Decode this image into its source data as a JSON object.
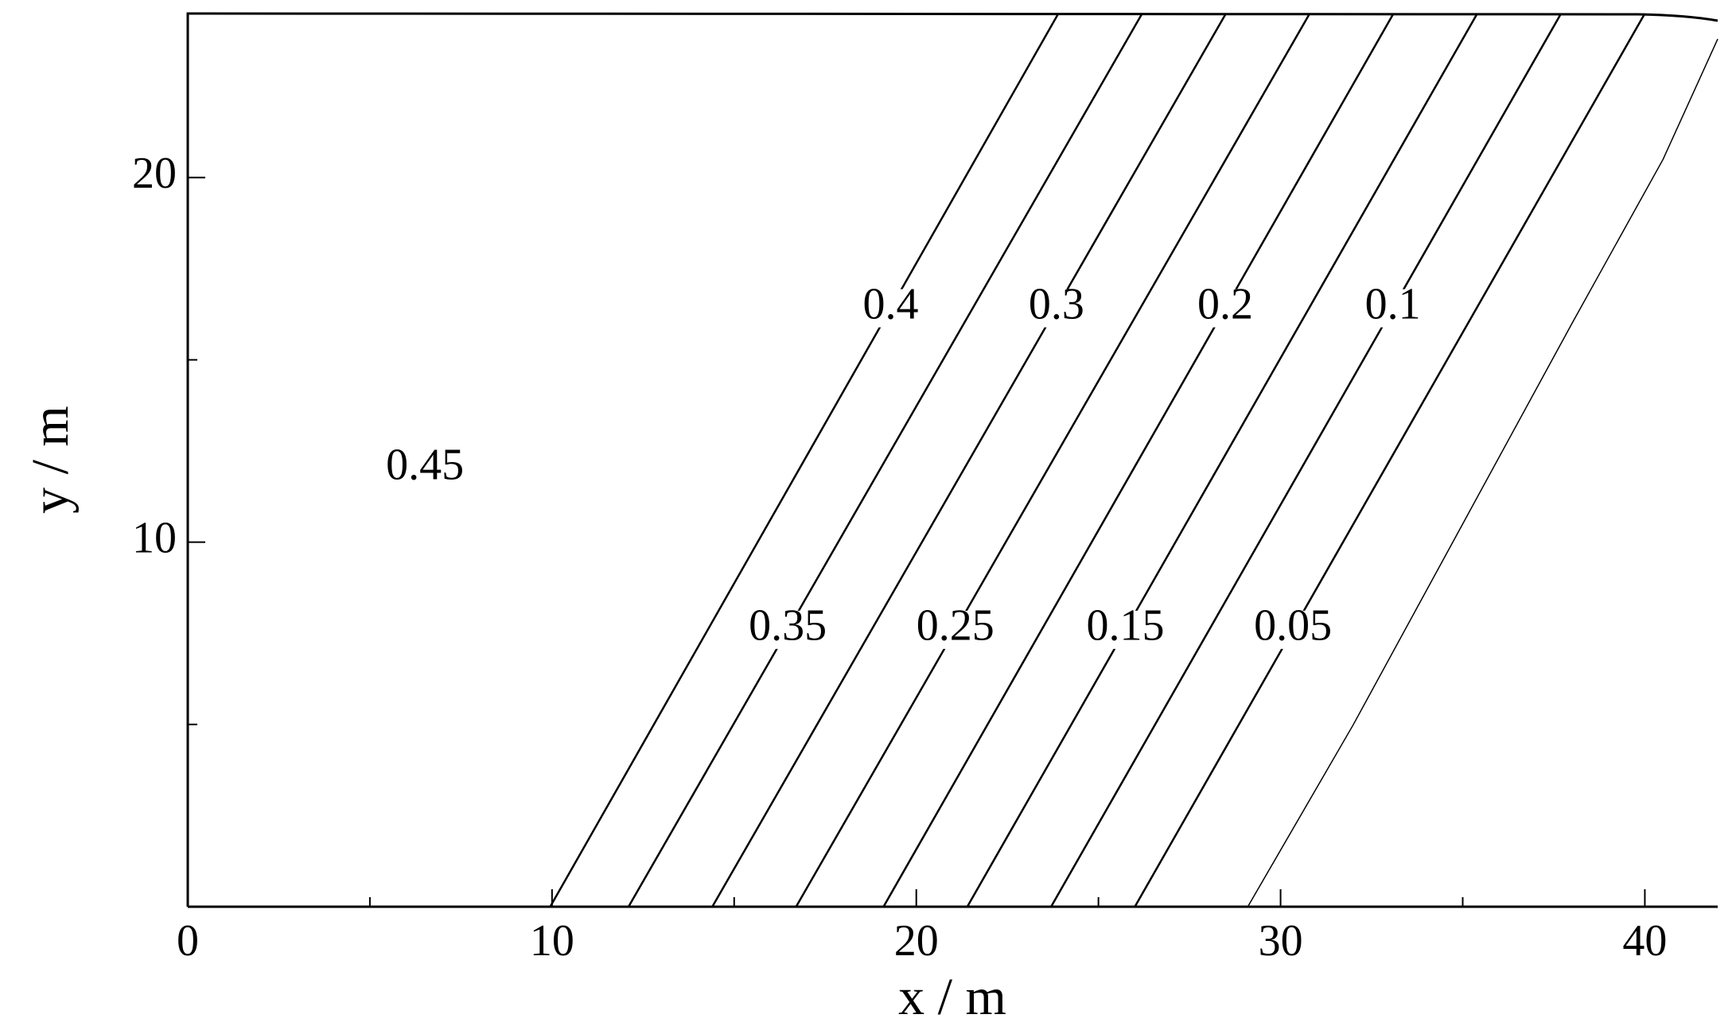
{
  "chart_data": {
    "type": "contour",
    "xlabel": "x / m",
    "ylabel": "y / m",
    "xlim": [
      0,
      42
    ],
    "ylim": [
      0,
      24.5
    ],
    "xticks": [
      0,
      10,
      20,
      30,
      40
    ],
    "yticks": [
      10,
      20
    ],
    "xminorticks": [
      5,
      15,
      25,
      35
    ],
    "yminorticks": [
      5,
      15
    ],
    "color": "#000000",
    "region_level": 0.45,
    "contours": [
      {
        "level": 0.4,
        "x": [
          9.95,
          23.9
        ],
        "y": [
          0,
          24.5
        ]
      },
      {
        "level": 0.35,
        "x": [
          12.1,
          26.2
        ],
        "y": [
          0,
          24.5
        ]
      },
      {
        "level": 0.3,
        "x": [
          14.4,
          28.5
        ],
        "y": [
          0,
          24.5
        ]
      },
      {
        "level": 0.25,
        "x": [
          16.7,
          30.8
        ],
        "y": [
          0,
          24.5
        ]
      },
      {
        "level": 0.2,
        "x": [
          19.1,
          33.1
        ],
        "y": [
          0,
          24.5
        ]
      },
      {
        "level": 0.15,
        "x": [
          21.4,
          35.4
        ],
        "y": [
          0,
          24.5
        ]
      },
      {
        "level": 0.1,
        "x": [
          23.7,
          37.7
        ],
        "y": [
          0,
          24.5
        ]
      },
      {
        "level": 0.05,
        "x": [
          26.0,
          40.0
        ],
        "y": [
          0,
          24.5
        ]
      },
      {
        "level": null,
        "x": [
          29.1,
          32,
          35,
          38,
          40.5,
          42
        ],
        "y": [
          0,
          5,
          10.5,
          16,
          20.5,
          23.8
        ]
      }
    ]
  }
}
